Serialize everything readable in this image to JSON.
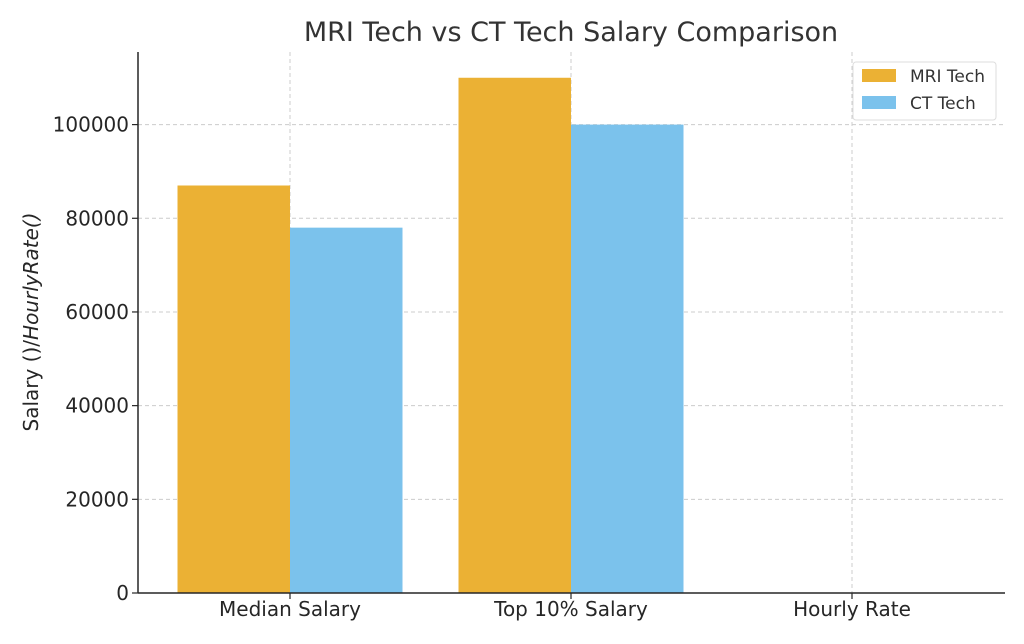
{
  "chart_data": {
    "type": "bar",
    "title": "MRI Tech vs CT Tech Salary Comparison",
    "xlabel": "",
    "ylabel_plain": "Salary ()/",
    "ylabel_italic": "HourlyRate()",
    "categories": [
      "Median Salary",
      "Top 10% Salary",
      "Hourly Rate"
    ],
    "series": [
      {
        "name": "MRI Tech",
        "color": "#EBB134",
        "values": [
          87000,
          110000,
          42
        ]
      },
      {
        "name": "CT Tech",
        "color": "#7BC2EC",
        "values": [
          78000,
          100000,
          38
        ]
      }
    ],
    "ylim": [
      0,
      115500
    ],
    "yticks": [
      0,
      20000,
      40000,
      60000,
      80000,
      100000
    ],
    "ytick_labels": [
      "0",
      "20000",
      "40000",
      "60000",
      "80000",
      "100000"
    ],
    "grid": true,
    "legend_position": "top-right"
  }
}
